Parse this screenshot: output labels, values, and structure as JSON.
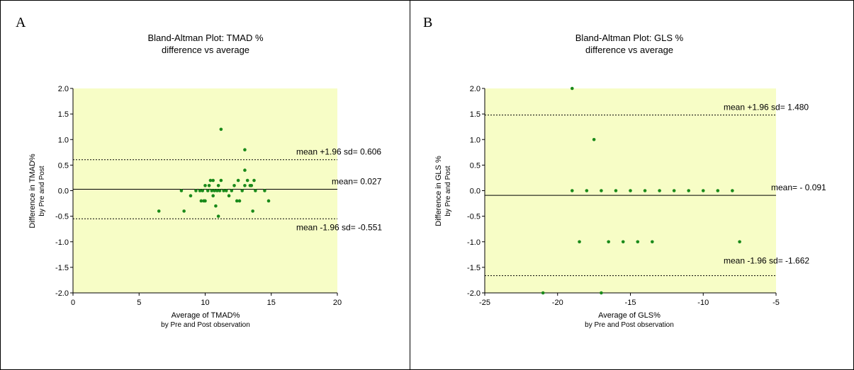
{
  "chart_data": [
    {
      "panel": "A",
      "type": "scatter",
      "title": "Bland-Altman Plot: TMAD %",
      "subtitle": "difference vs average",
      "xlabel": "Average of TMAD%",
      "xlabel_sub": "by Pre and Post observation",
      "ylabel": "Difference in TMAD%",
      "ylabel_sub": "by Pre  and Post",
      "xlim": [
        0,
        20
      ],
      "ylim": [
        -2.0,
        2.0
      ],
      "xticks": [
        "0",
        "5",
        "10",
        "15",
        "20"
      ],
      "yticks": [
        "2.0",
        "1.5",
        "1.0",
        "0.5",
        "0.0",
        "-0.5",
        "-1.0",
        "-1.5",
        "-2.0"
      ],
      "point_color": "#1a8a1a",
      "background_color": "#f7fdc6",
      "lines": [
        {
          "kind": "upper",
          "y": 0.606,
          "style": "dotted",
          "label": "mean +1.96 sd= 0.606"
        },
        {
          "kind": "mean",
          "y": 0.027,
          "style": "solid",
          "label": "mean=  0.027"
        },
        {
          "kind": "lower",
          "y": -0.551,
          "style": "dotted",
          "label": "mean -1.96 sd= -0.551"
        }
      ],
      "points": [
        [
          6.5,
          -0.4
        ],
        [
          8.2,
          0.0
        ],
        [
          8.4,
          -0.4
        ],
        [
          8.9,
          -0.1
        ],
        [
          9.3,
          0.0
        ],
        [
          9.6,
          0.0
        ],
        [
          9.7,
          -0.2
        ],
        [
          9.8,
          0.0
        ],
        [
          9.9,
          -0.2
        ],
        [
          10.0,
          0.1
        ],
        [
          10.0,
          -0.2
        ],
        [
          10.2,
          0.0
        ],
        [
          10.3,
          0.1
        ],
        [
          10.4,
          0.2
        ],
        [
          10.5,
          0.0
        ],
        [
          10.6,
          0.2
        ],
        [
          10.6,
          -0.1
        ],
        [
          10.7,
          0.0
        ],
        [
          10.8,
          -0.3
        ],
        [
          10.9,
          0.0
        ],
        [
          11.0,
          0.1
        ],
        [
          11.0,
          -0.5
        ],
        [
          11.1,
          0.0
        ],
        [
          11.2,
          0.2
        ],
        [
          11.2,
          1.2
        ],
        [
          11.4,
          0.0
        ],
        [
          11.6,
          0.0
        ],
        [
          11.8,
          -0.1
        ],
        [
          12.0,
          0.0
        ],
        [
          12.2,
          0.1
        ],
        [
          12.4,
          -0.2
        ],
        [
          12.5,
          0.2
        ],
        [
          12.6,
          -0.2
        ],
        [
          12.8,
          0.0
        ],
        [
          13.0,
          0.1
        ],
        [
          13.0,
          0.8
        ],
        [
          13.0,
          0.4
        ],
        [
          13.2,
          0.2
        ],
        [
          13.4,
          0.1
        ],
        [
          13.5,
          0.1
        ],
        [
          13.6,
          -0.4
        ],
        [
          13.7,
          0.2
        ],
        [
          13.8,
          0.0
        ],
        [
          14.5,
          0.0
        ],
        [
          14.8,
          -0.2
        ]
      ]
    },
    {
      "panel": "B",
      "type": "scatter",
      "title": "Bland-Altman Plot: GLS %",
      "subtitle": "difference vs average",
      "xlabel": "Average of GLS%",
      "xlabel_sub": "by Pre and Post observation",
      "ylabel": "Difference in GLS %",
      "ylabel_sub": "by Pre and Post",
      "xlim": [
        -25,
        -5
      ],
      "ylim": [
        -2.0,
        2.0
      ],
      "xticks": [
        "-25",
        "-20",
        "-15",
        "-10",
        "-5"
      ],
      "yticks": [
        "2.0",
        "1.5",
        "1.0",
        "0.5",
        "0.0",
        "-0.5",
        "-1.0",
        "-1.5",
        "-2.0"
      ],
      "point_color": "#1a8a1a",
      "background_color": "#f7fdc6",
      "lines": [
        {
          "kind": "upper",
          "y": 1.48,
          "style": "dotted",
          "label": "mean +1.96 sd= 1.480"
        },
        {
          "kind": "mean",
          "y": -0.091,
          "style": "solid",
          "label": "mean= - 0.091"
        },
        {
          "kind": "lower",
          "y": -1.662,
          "style": "dotted",
          "label": "mean -1.96 sd= -1.662"
        }
      ],
      "points": [
        [
          -19.0,
          2.0
        ],
        [
          -17.5,
          1.0
        ],
        [
          -19.0,
          0.0
        ],
        [
          -18.0,
          0.0
        ],
        [
          -17.0,
          0.0
        ],
        [
          -16.0,
          0.0
        ],
        [
          -15.0,
          0.0
        ],
        [
          -14.0,
          0.0
        ],
        [
          -13.0,
          0.0
        ],
        [
          -12.0,
          0.0
        ],
        [
          -11.0,
          0.0
        ],
        [
          -10.0,
          0.0
        ],
        [
          -9.0,
          0.0
        ],
        [
          -8.0,
          0.0
        ],
        [
          -18.5,
          -1.0
        ],
        [
          -16.5,
          -1.0
        ],
        [
          -15.5,
          -1.0
        ],
        [
          -14.5,
          -1.0
        ],
        [
          -13.5,
          -1.0
        ],
        [
          -7.5,
          -1.0
        ],
        [
          -21.0,
          -2.0
        ],
        [
          -17.0,
          -2.0
        ]
      ]
    }
  ],
  "panels": [
    {
      "letter": "A"
    },
    {
      "letter": "B"
    }
  ]
}
